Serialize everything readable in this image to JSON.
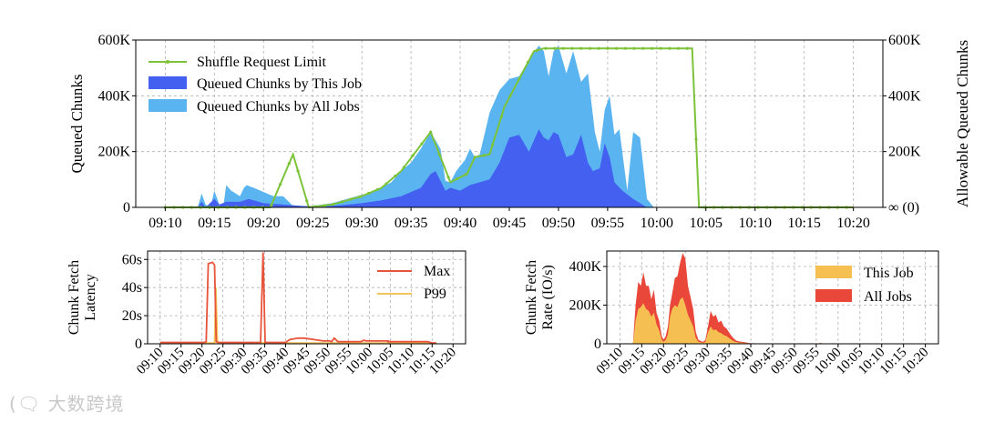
{
  "chart_data": [
    {
      "type": "area",
      "title": "",
      "ylabel": "Queued Chunks",
      "ylabel_right": "Allowable Queued Chunks",
      "ylim": [
        0,
        600000
      ],
      "yticks": [
        "0",
        "200K",
        "400K",
        "600K"
      ],
      "yticks_right": [
        "∞ (0)",
        "200K",
        "400K",
        "600K"
      ],
      "xticks": [
        "09:10",
        "09:15",
        "09:20",
        "09:25",
        "09:30",
        "09:35",
        "09:40",
        "09:45",
        "09:50",
        "09:55",
        "10:00",
        "10:05",
        "10:10",
        "10:15",
        "10:20"
      ],
      "xlim": [
        0,
        70
      ],
      "legend_loc": "top-left",
      "colors": {
        "limit": "#7cc33a",
        "this_job": "#4360f0",
        "all_jobs": "#5ab4f0"
      },
      "series": [
        {
          "name": "Shuffle Request Limit",
          "kind": "line",
          "x": [
            0,
            10.7,
            13,
            14.6,
            17,
            20,
            22,
            24,
            27,
            29,
            30.7,
            31.5,
            33,
            34.5,
            36,
            37.5,
            38.5,
            39.5,
            41.2,
            53.6,
            54.3,
            70
          ],
          "values": [
            0,
            0,
            190000,
            0,
            10000,
            40000,
            70000,
            130000,
            270000,
            90000,
            120000,
            180000,
            190000,
            360000,
            460000,
            560000,
            570000,
            570000,
            570000,
            570000,
            0,
            0
          ]
        },
        {
          "name": "Queued Chunks by All Jobs",
          "kind": "area",
          "x": [
            3.3,
            3.7,
            4.1,
            4.6,
            5,
            5.5,
            5.9,
            6.2,
            6.7,
            7.6,
            8,
            8.3,
            8.6,
            9,
            10,
            11,
            12,
            13,
            14,
            14.5,
            15,
            16,
            17,
            18,
            19,
            20,
            21,
            22,
            23,
            24,
            25,
            26,
            27,
            28,
            28.5,
            29,
            29.6,
            30.5,
            31,
            31.5,
            32,
            33,
            34,
            35,
            36,
            37,
            38,
            38.5,
            39,
            39.5,
            40,
            40.8,
            41.5,
            42.3,
            43,
            43.7,
            44.2,
            44.7,
            45.2,
            45.7,
            46.2,
            47,
            47.6,
            48.3,
            49,
            49.7,
            50.4,
            54.5,
            54.7,
            55.3,
            56
          ],
          "values": [
            0,
            50000,
            10000,
            0,
            60000,
            10000,
            0,
            80000,
            60000,
            40000,
            70000,
            80000,
            75000,
            70000,
            55000,
            40000,
            40000,
            5000,
            2000,
            4000,
            5000,
            10000,
            15000,
            25000,
            35000,
            45000,
            55000,
            70000,
            90000,
            130000,
            160000,
            210000,
            270000,
            210000,
            95000,
            90000,
            130000,
            170000,
            210000,
            180000,
            190000,
            340000,
            420000,
            460000,
            470000,
            530000,
            580000,
            560000,
            470000,
            560000,
            580000,
            480000,
            560000,
            450000,
            480000,
            270000,
            200000,
            350000,
            400000,
            260000,
            280000,
            60000,
            270000,
            250000,
            30000,
            0,
            0,
            0,
            5000,
            0,
            0
          ]
        },
        {
          "name": "Queued Chunks by This Job",
          "kind": "area",
          "x": [
            3.3,
            3.7,
            4.1,
            5,
            5.5,
            6.2,
            7.6,
            8.5,
            10,
            12,
            14,
            16,
            18,
            20,
            22,
            24,
            26,
            27,
            27.5,
            28.5,
            29,
            30,
            31,
            33,
            34,
            35,
            36,
            37,
            38,
            38.5,
            39,
            39.5,
            40,
            40.8,
            41.5,
            42.3,
            43,
            43.5,
            44.2,
            44.7,
            45.2,
            45.7,
            46.5,
            47.6,
            49,
            56
          ],
          "values": [
            0,
            20000,
            0,
            30000,
            10000,
            20000,
            20000,
            30000,
            15000,
            10000,
            5000,
            3000,
            8000,
            15000,
            25000,
            40000,
            70000,
            120000,
            130000,
            60000,
            70000,
            60000,
            80000,
            100000,
            160000,
            250000,
            260000,
            200000,
            280000,
            250000,
            240000,
            270000,
            260000,
            180000,
            190000,
            260000,
            160000,
            130000,
            140000,
            230000,
            180000,
            90000,
            60000,
            30000,
            0,
            0
          ]
        }
      ]
    },
    {
      "type": "line",
      "ylabel": "Chunk Fetch\nLatency",
      "ylim": [
        0,
        66
      ],
      "yticks": [
        "0",
        "20s",
        "40s",
        "60s"
      ],
      "xticks": [
        "09:10",
        "09:15",
        "09:20",
        "09:25",
        "09:30",
        "09:35",
        "09:40",
        "09:45",
        "09:50",
        "09:55",
        "10:00",
        "10:05",
        "10:10",
        "10:15",
        "10:20"
      ],
      "xlim": [
        0,
        70
      ],
      "legend_loc": "top-right",
      "colors": {
        "max": "#e8543a",
        "p99": "#f2c45a"
      },
      "series": [
        {
          "name": "Max",
          "kind": "line",
          "x": [
            0,
            10.5,
            11,
            11.5,
            12.5,
            13,
            13.4,
            14,
            24,
            24.6,
            25.1,
            26,
            30,
            30.5,
            31,
            33,
            34.5,
            39,
            40.5,
            41,
            41.6,
            42.5,
            48,
            48.7,
            49.3,
            54.5,
            54.5,
            64,
            65,
            66
          ],
          "values": [
            1,
            1,
            1.5,
            57,
            58,
            56,
            1.5,
            1,
            1,
            65,
            1,
            1,
            1,
            2,
            3,
            4,
            4,
            2,
            2,
            1.5,
            4,
            1.5,
            1.5,
            2.5,
            2,
            2,
            1.5,
            1.5,
            0.5,
            0.5
          ]
        },
        {
          "name": "P99",
          "kind": "line",
          "x": [
            0,
            12.5,
            13,
            13.3,
            13.7,
            14,
            24,
            24.6,
            25.1,
            26,
            66
          ],
          "values": [
            0.5,
            0.5,
            0.8,
            40,
            0.8,
            0.5,
            0.5,
            1,
            0.5,
            0.5,
            0.5
          ]
        }
      ]
    },
    {
      "type": "area",
      "ylabel": "Chunk Fetch\nRate (IO/s)",
      "ylim": [
        0,
        480000
      ],
      "yticks": [
        "0",
        "200K",
        "400K"
      ],
      "xticks": [
        "09:10",
        "09:15",
        "09:20",
        "09:25",
        "09:30",
        "09:35",
        "09:40",
        "09:45",
        "09:50",
        "09:55",
        "10:00",
        "10:05",
        "10:10",
        "10:15",
        "10:20"
      ],
      "xlim": [
        0,
        70
      ],
      "legend_loc": "top-right",
      "colors": {
        "this_job": "#f5bf52",
        "all_jobs": "#e9473a"
      },
      "series": [
        {
          "name": "All Jobs",
          "kind": "area",
          "x": [
            3,
            3.6,
            4.2,
            4.8,
            5.4,
            6,
            6.6,
            7.2,
            7.8,
            8.4,
            9,
            9.6,
            10,
            10.5,
            11,
            11.5,
            12,
            12.6,
            13.2,
            13.8,
            14.4,
            15,
            15.6,
            16.2,
            16.8,
            17.4,
            18,
            19,
            19.6,
            20.2,
            20.8,
            21.4,
            22,
            22.6,
            23.2,
            23.8,
            24.4,
            25,
            25.6,
            26.2,
            26.8,
            27.4,
            28,
            28.6,
            29.2,
            29.8,
            30.4,
            31,
            31.6,
            32.2,
            32.8,
            33.4,
            34,
            35,
            36,
            45,
            46,
            47
          ],
          "values": [
            0,
            200000,
            320000,
            300000,
            370000,
            300000,
            300000,
            230000,
            280000,
            160000,
            120000,
            40000,
            20000,
            40000,
            90000,
            200000,
            260000,
            340000,
            350000,
            420000,
            470000,
            440000,
            300000,
            240000,
            180000,
            60000,
            20000,
            10000,
            20000,
            90000,
            170000,
            140000,
            150000,
            110000,
            120000,
            90000,
            80000,
            60000,
            40000,
            25000,
            15000,
            12000,
            10000,
            8000,
            5000,
            3000,
            3000,
            2000,
            1000,
            1000,
            0,
            0,
            0,
            0,
            0,
            0,
            4000,
            0
          ]
        },
        {
          "name": "This Job",
          "kind": "area",
          "x": [
            3,
            3.6,
            4.2,
            4.8,
            5.4,
            6,
            6.6,
            7.2,
            7.8,
            8.4,
            9,
            9.6,
            10,
            10.5,
            11,
            11.5,
            12,
            12.6,
            13.2,
            13.8,
            14.4,
            15,
            15.6,
            16.2,
            16.8,
            17.4,
            18,
            19,
            19.6,
            20.2,
            20.8,
            21.4,
            22,
            22.6,
            23.2,
            23.8,
            24.4,
            25,
            25.6,
            26.2,
            26.8,
            27.4,
            28,
            28.6,
            29.2,
            29.8,
            30.4,
            31,
            31.6,
            32.2,
            32.8,
            33.4,
            34,
            35,
            36,
            45,
            46,
            47
          ],
          "values": [
            0,
            120000,
            180000,
            190000,
            210000,
            180000,
            170000,
            140000,
            160000,
            100000,
            70000,
            20000,
            10000,
            20000,
            50000,
            140000,
            180000,
            200000,
            190000,
            230000,
            240000,
            200000,
            150000,
            120000,
            90000,
            30000,
            10000,
            5000,
            10000,
            60000,
            90000,
            70000,
            75000,
            60000,
            55000,
            45000,
            40000,
            30000,
            20000,
            12000,
            8000,
            6000,
            5000,
            4000,
            3000,
            2000,
            2000,
            1000,
            500,
            500,
            0,
            0,
            0,
            0,
            0,
            0,
            2000,
            0
          ]
        }
      ]
    }
  ],
  "watermark": "大数跨境"
}
